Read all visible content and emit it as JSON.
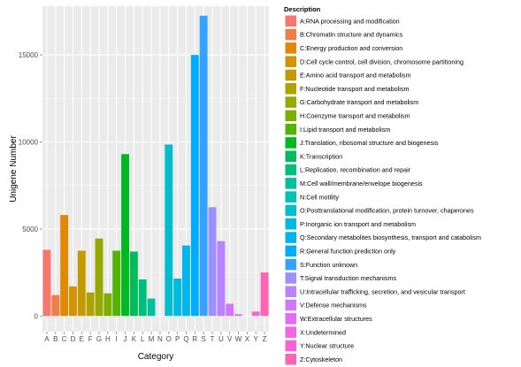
{
  "chart_data": {
    "type": "bar",
    "xlabel": "Category",
    "ylabel": "Unigene Number",
    "ylim": [
      0,
      17800
    ],
    "yticks": [
      0,
      5000,
      10000,
      15000
    ],
    "grid": true,
    "legend_title": "Description",
    "legend_position": "right",
    "categories": [
      "A",
      "B",
      "C",
      "D",
      "E",
      "F",
      "G",
      "H",
      "I",
      "J",
      "K",
      "L",
      "M",
      "N",
      "O",
      "P",
      "Q",
      "R",
      "S",
      "T",
      "U",
      "V",
      "W",
      "X",
      "Y",
      "Z"
    ],
    "values": [
      3800,
      1200,
      5800,
      1700,
      3750,
      1350,
      4450,
      1300,
      3750,
      9300,
      3700,
      2100,
      1000,
      0,
      9850,
      2150,
      4050,
      15000,
      17250,
      6250,
      4300,
      700,
      100,
      0,
      250,
      2500
    ],
    "descriptions": [
      "A:RNA processing and modification",
      "B:Chromatin structure and dynamics",
      "C:Energy production and conversion",
      "D:Cell cycle control, cell division, chromosome partitioning",
      "E:Amino acid transport and metabolism",
      "F:Nucleotide transport and metabolism",
      "G:Carbohydrate transport and metabolism",
      "H:Coenzyme transport and metabolism",
      "I:Lipid transport and metabolism",
      "J:Translation, ribosomal structure and biogenesis",
      "K:Transcription",
      "L:Replication, recombination and repair",
      "M:Cell wall/membrane/envelope biogenesis",
      "N:Cell motility",
      "O:Posttranslational modification, protein turnover, chaperones",
      "P:Inorganic ion transport and metabolism",
      "Q:Secondary metabolites biosynthesis, transport and catabolism",
      "R:General function prediction only",
      "S:Function unknown",
      "T:Signal transduction mechanisms",
      "U:Intracellular trafficking, secretion, and vesicular transport",
      "V:Defense mechanisms",
      "W:Extracellular structures",
      "X:Undetermined",
      "Y:Nuclear structure",
      "Z:Cytoskeleton"
    ],
    "colors": [
      "#F8766D",
      "#EF7F47",
      "#E38900",
      "#D49300",
      "#C39B00",
      "#AFA200",
      "#97A900",
      "#7CAE00",
      "#53B400",
      "#00B81F",
      "#00BC59",
      "#00BF7D",
      "#00C19C",
      "#00C1B7",
      "#00BECF",
      "#00BAE0",
      "#00B4EF",
      "#00ACFC",
      "#35A2FF",
      "#9E8FFF",
      "#B983FF",
      "#D177FF",
      "#E46DF6",
      "#F265E7",
      "#FC61D5",
      "#FF64B0"
    ]
  }
}
